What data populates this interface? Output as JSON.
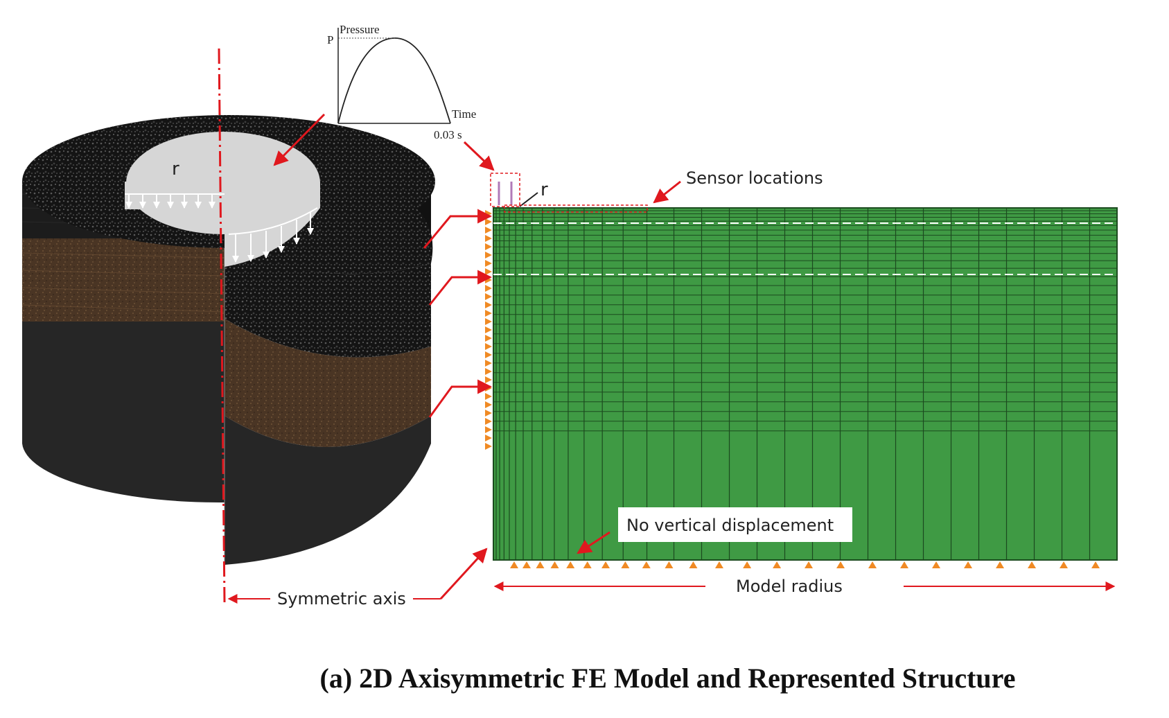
{
  "pulse_inset": {
    "y_axis_label": "Pressure",
    "peak_label": "P",
    "x_axis_label": "Time",
    "duration_label": "0.03 s"
  },
  "cylinder": {
    "load_radius_label": "r",
    "colors": {
      "asphalt": "#161616",
      "base": "#4a3524",
      "subgrade": "#262626",
      "load_plate": "#d6d6d6"
    }
  },
  "fe_model": {
    "load_radius_label": "r",
    "sensor_label": "Sensor locations",
    "bottom_bc_label": "No vertical displacement",
    "radius_label": "Model radius",
    "mesh_color": "#3f9a44"
  },
  "symmetric_axis_label": "Symmetric axis",
  "caption": "(a) 2D Axisymmetric FE Model and Represented Structure",
  "accent_color": "#e0181e"
}
